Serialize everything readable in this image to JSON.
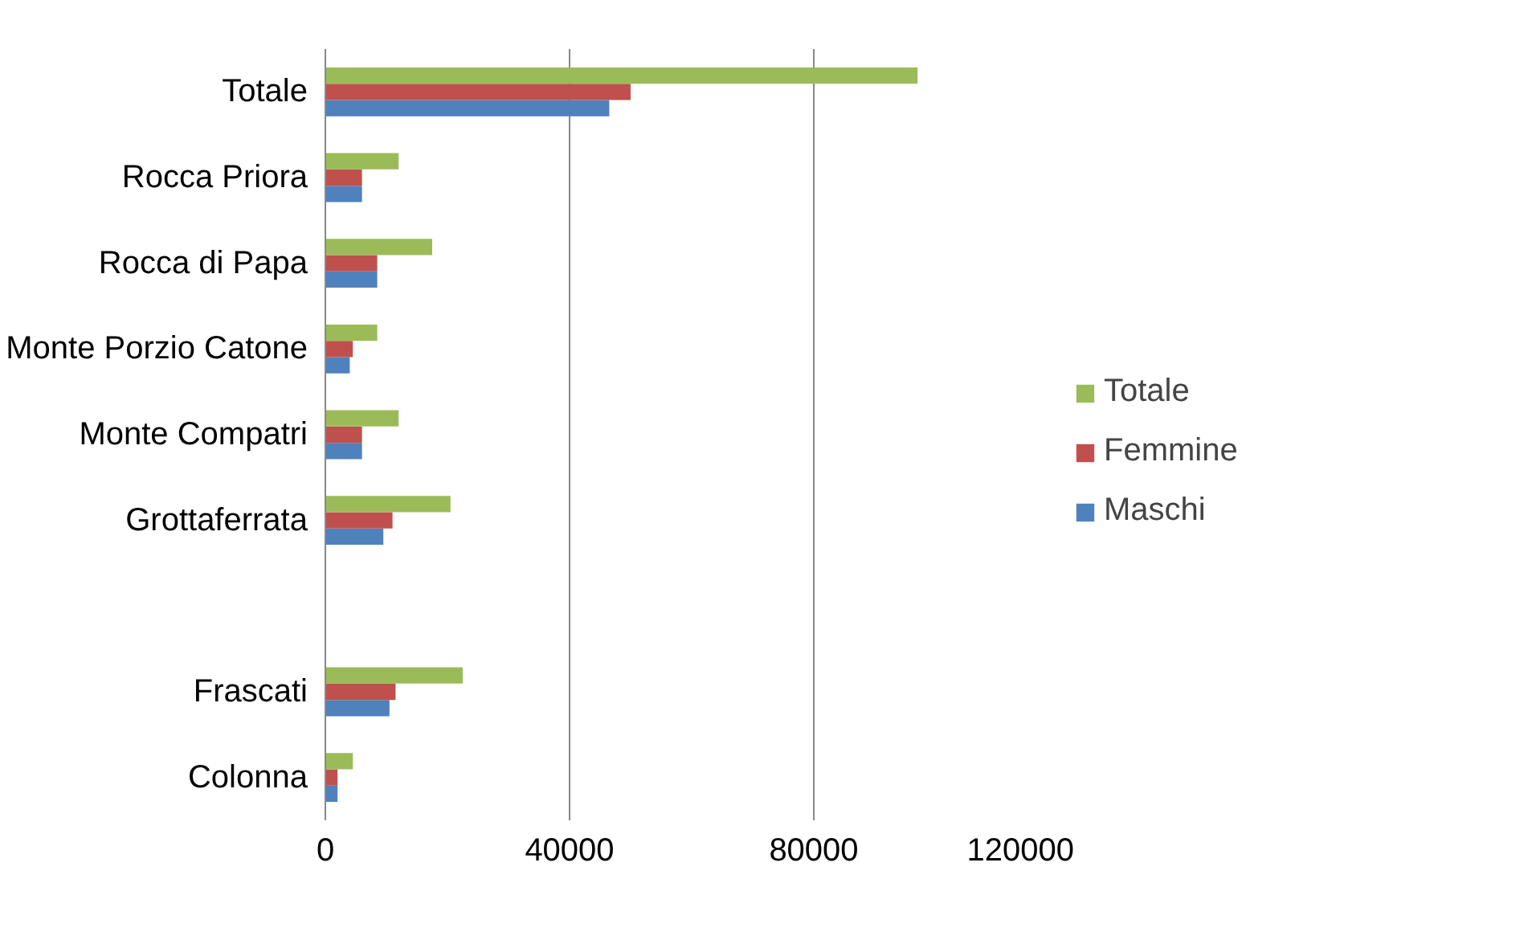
{
  "chart_data": {
    "type": "bar",
    "orientation": "horizontal",
    "categories": [
      "Totale",
      "Rocca Priora",
      "Rocca di Papa",
      "Monte Porzio Catone",
      "Monte Compatri",
      "Grottaferrata",
      null,
      "Frascati",
      "Colonna"
    ],
    "series": [
      {
        "name": "Maschi",
        "color": "#4f81bd",
        "values": [
          46500,
          6000,
          8500,
          4000,
          6000,
          9500,
          null,
          10500,
          2000
        ]
      },
      {
        "name": "Femmine",
        "color": "#c0504d",
        "values": [
          50000,
          6000,
          8500,
          4500,
          6000,
          11000,
          null,
          11500,
          2000
        ]
      },
      {
        "name": "Totale",
        "color": "#9bbb59",
        "values": [
          97000,
          12000,
          17500,
          8500,
          12000,
          20500,
          null,
          22500,
          4500
        ]
      }
    ],
    "xlim": [
      0,
      120000
    ],
    "xticks": [
      0,
      40000,
      80000,
      120000
    ],
    "grid": "x",
    "legend": "right"
  }
}
